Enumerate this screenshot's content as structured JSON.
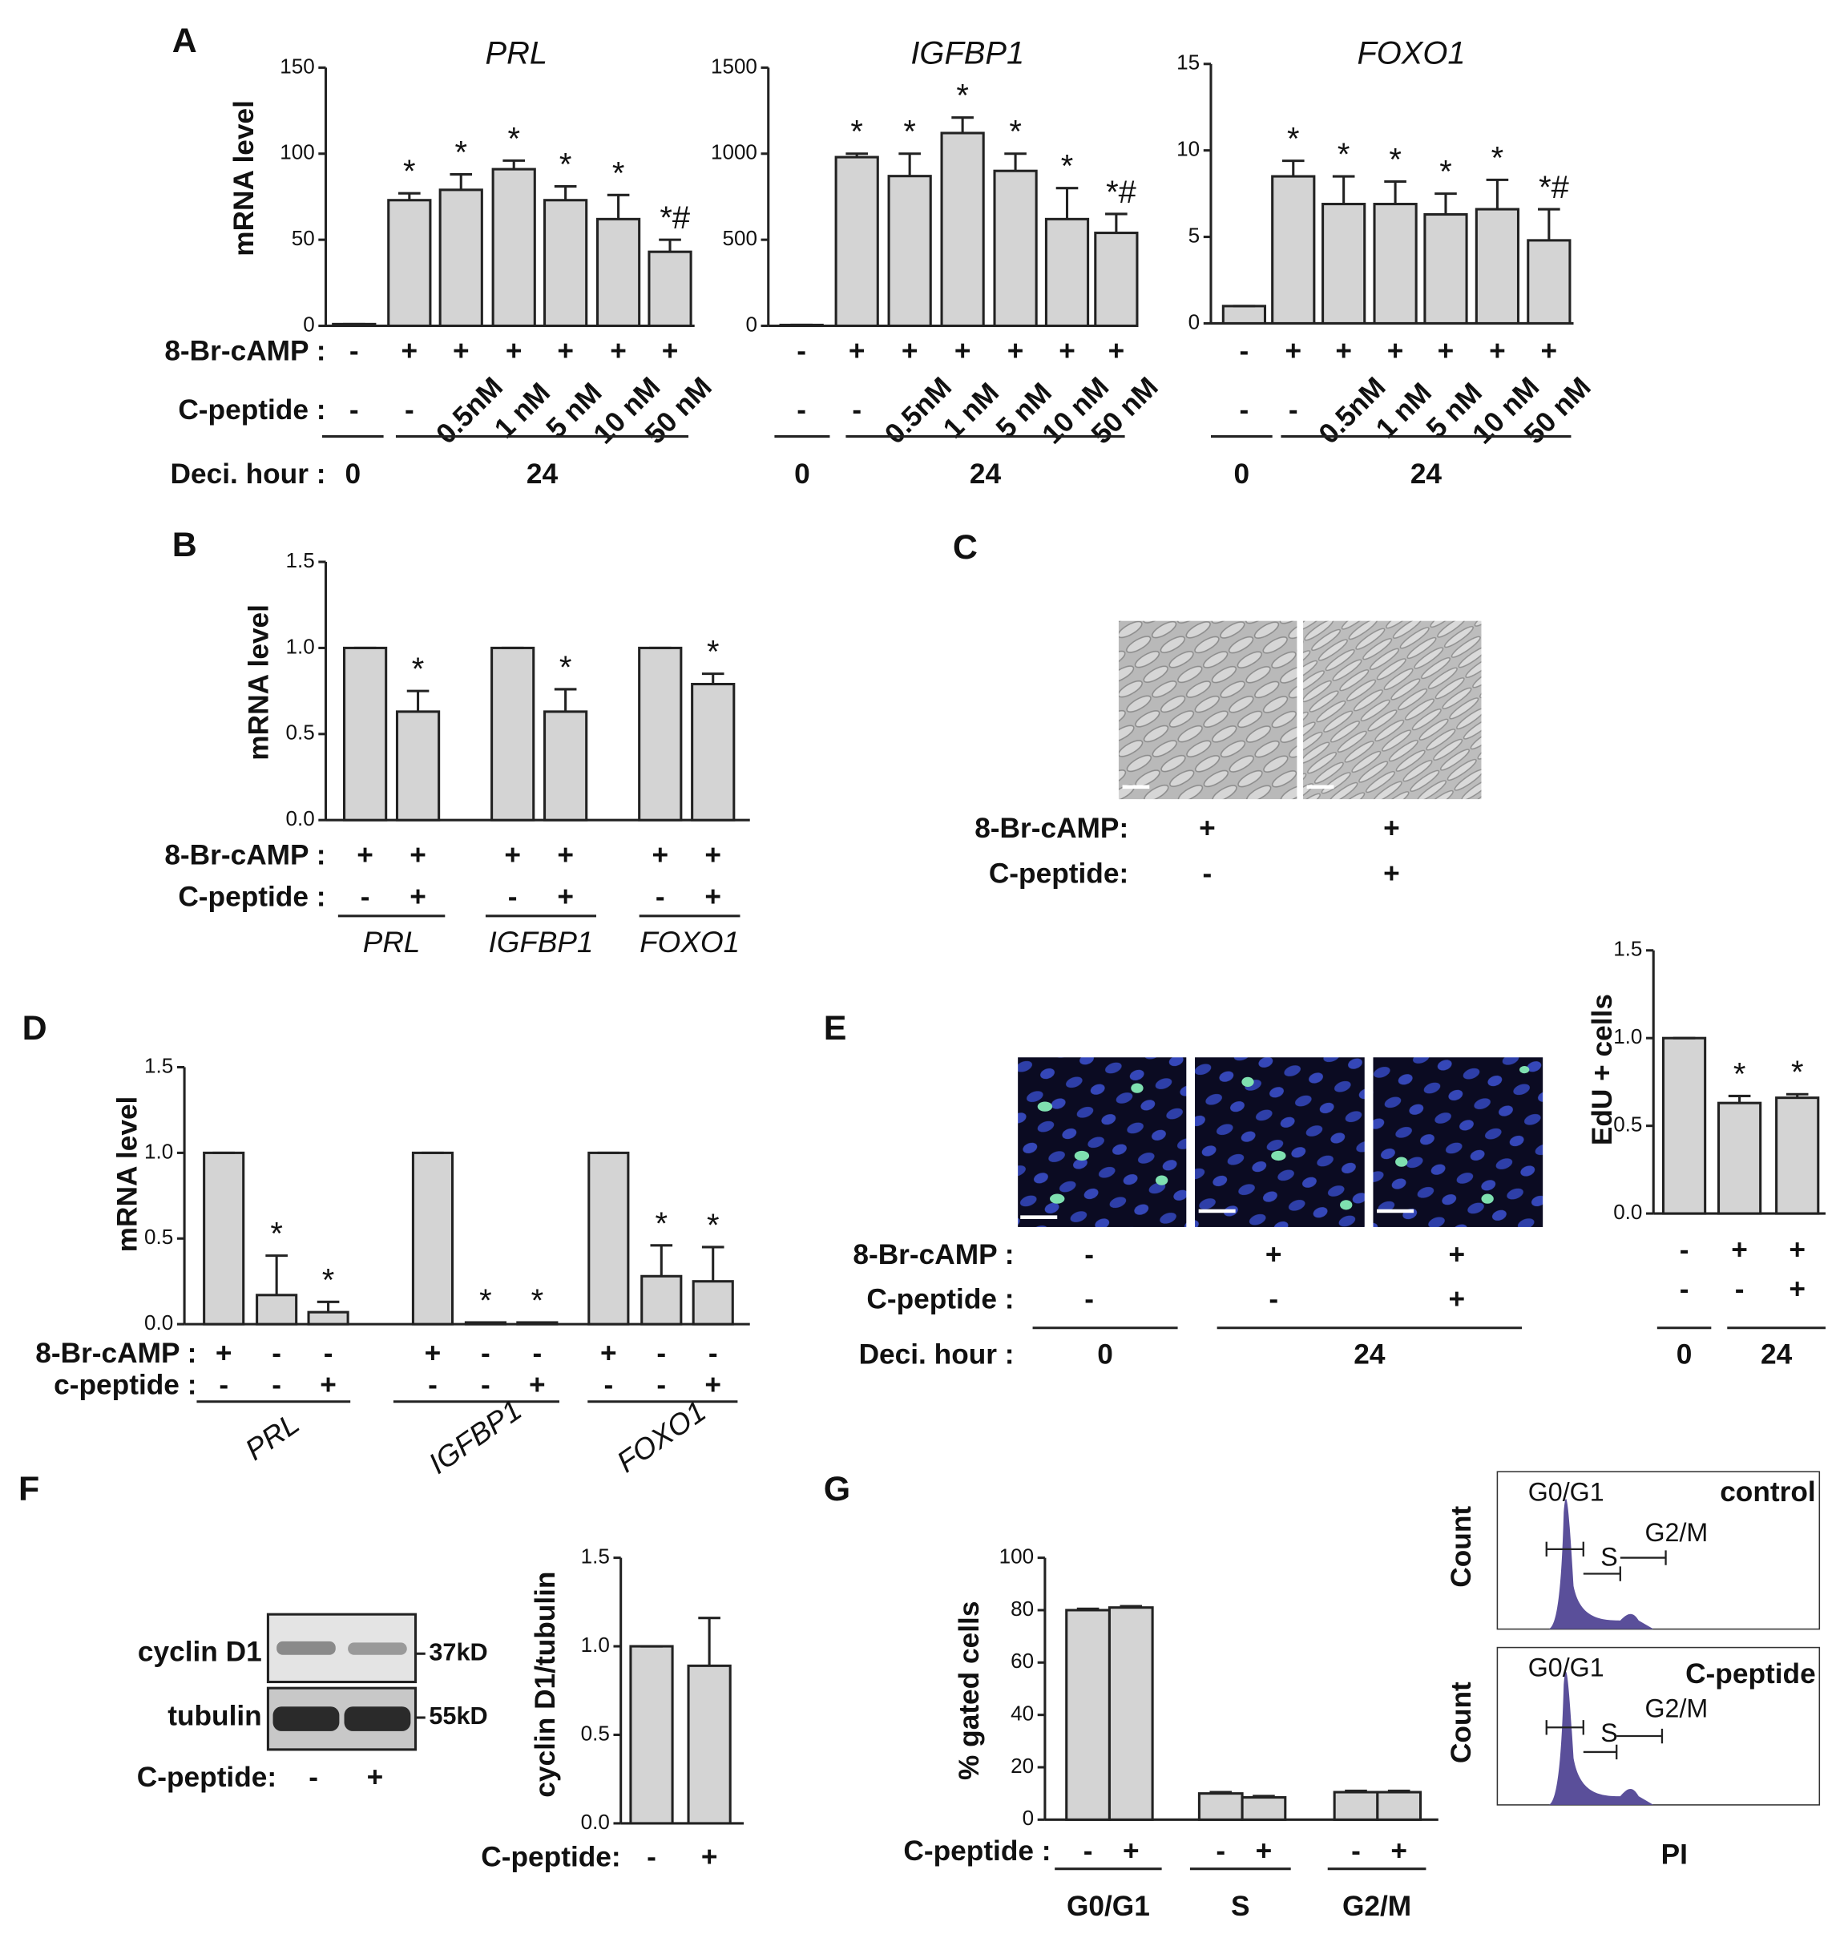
{
  "panel_labels": [
    "A",
    "B",
    "C",
    "D",
    "E",
    "F",
    "G"
  ],
  "chart_data": [
    {
      "type": "bar",
      "title": "PRL",
      "ylabel": "mRNA level",
      "color": "#d4d4d4",
      "values": [
        1,
        73,
        79,
        91,
        73,
        62,
        43
      ],
      "errors": [
        0,
        4,
        9,
        5,
        8,
        14,
        7
      ],
      "annotations": [
        null,
        "*",
        "*",
        "*",
        "*",
        "*",
        "*#"
      ],
      "ylim": [
        0,
        150
      ],
      "yticks": [
        0,
        50,
        100,
        150
      ],
      "rows": [
        {
          "name": "8-Br-cAMP :",
          "labels": [
            "-",
            "+",
            "+",
            "+",
            "+",
            "+",
            "+"
          ]
        },
        {
          "name": "C-peptide :",
          "labels": [
            "-",
            "-",
            "0.5nM",
            "1 nM",
            "5 nM",
            "10 nM",
            "50 nM"
          ]
        }
      ],
      "group_name": "Deci. hour :",
      "groups": [
        "0",
        "24"
      ]
    },
    {
      "type": "bar",
      "title": "IGFBP1",
      "color": "#d4d4d4",
      "values": [
        5,
        980,
        870,
        1120,
        900,
        620,
        540
      ],
      "errors": [
        0,
        20,
        130,
        90,
        100,
        180,
        110
      ],
      "annotations": [
        null,
        "*",
        "*",
        "*",
        "*",
        "*",
        "*#"
      ],
      "ylim": [
        0,
        1500
      ],
      "yticks": [
        0,
        500,
        1000,
        1500
      ],
      "rows": [
        {
          "labels": [
            "-",
            "+",
            "+",
            "+",
            "+",
            "+",
            "+"
          ]
        },
        {
          "labels": [
            "-",
            "-",
            "0.5nM",
            "1 nM",
            "5 nM",
            "10 nM",
            "50 nM"
          ]
        }
      ],
      "groups": [
        "0",
        "24"
      ]
    },
    {
      "type": "bar",
      "title": "FOXO1",
      "color": "#d4d4d4",
      "values": [
        1,
        8.5,
        6.9,
        6.9,
        6.3,
        6.6,
        4.8
      ],
      "errors": [
        0,
        0.9,
        1.6,
        1.3,
        1.2,
        1.7,
        1.8
      ],
      "annotations": [
        null,
        "*",
        "*",
        "*",
        "*",
        "*",
        "*#"
      ],
      "ylim": [
        0,
        15
      ],
      "yticks": [
        0,
        5,
        10,
        15
      ],
      "rows": [
        {
          "labels": [
            "-",
            "+",
            "+",
            "+",
            "+",
            "+",
            "+"
          ]
        },
        {
          "labels": [
            "-",
            "-",
            "0.5nM",
            "1 nM",
            "5 nM",
            "10 nM",
            "50 nM"
          ]
        }
      ],
      "groups": [
        "0",
        "24"
      ]
    },
    {
      "type": "bar",
      "ylabel": "mRNA level",
      "color": "#d4d4d4",
      "values": [
        1,
        0.63,
        1,
        0.63,
        1,
        0.79
      ],
      "errors": [
        0,
        0.12,
        0,
        0.13,
        0,
        0.06
      ],
      "annotations": [
        null,
        "*",
        null,
        "*",
        null,
        "*"
      ],
      "ylim": [
        0,
        1.5
      ],
      "yticks": [
        {
          "value": 0,
          "label": "0.0"
        },
        0.5,
        {
          "value": 1,
          "label": "1.0"
        },
        1.5
      ],
      "rows": [
        {
          "name": "8-Br-cAMP :",
          "labels": [
            "+",
            "+",
            "+",
            "+",
            "+",
            "+"
          ]
        },
        {
          "name": "C-peptide :",
          "labels": [
            "-",
            "+",
            "-",
            "+",
            "-",
            "+"
          ]
        }
      ],
      "groups": [
        "PRL",
        "IGFBP1",
        "FOXO1"
      ]
    },
    {
      "type": "bar",
      "ylabel": "mRNA level",
      "color": "#d4d4d4",
      "values": [
        1,
        0.17,
        0.07,
        1,
        0.01,
        0.01,
        1,
        0.28,
        0.25
      ],
      "errors": [
        0,
        0.23,
        0.06,
        0,
        0,
        0,
        0,
        0.18,
        0.2
      ],
      "annotations": [
        null,
        "*",
        "*",
        null,
        "*",
        "*",
        null,
        "*",
        "*"
      ],
      "ylim": [
        0,
        1.5
      ],
      "yticks": [
        {
          "value": 0,
          "label": "0.0"
        },
        0.5,
        {
          "value": 1,
          "label": "1.0"
        },
        1.5
      ],
      "rows": [
        {
          "name": "8-Br-cAMP :",
          "labels": [
            "+",
            "-",
            "-",
            "+",
            "-",
            "-",
            "+",
            "-",
            "-"
          ]
        },
        {
          "name": "c-peptide  :",
          "labels": [
            "-",
            "-",
            "+",
            "-",
            "-",
            "+",
            "-",
            "-",
            "+"
          ]
        }
      ],
      "groups": [
        "PRL",
        "IGFBP1",
        "FOXO1"
      ]
    },
    {
      "type": "bar",
      "ylabel": "EdU + cells",
      "color": "#d4d4d4",
      "values": [
        1,
        0.63,
        0.66
      ],
      "errors": [
        0,
        0.04,
        0.02
      ],
      "annotations": [
        null,
        "*",
        "*"
      ],
      "ylim": [
        0,
        1.5
      ],
      "yticks": [
        {
          "value": 0,
          "label": "0.0"
        },
        0.5,
        {
          "value": 1,
          "label": "1.0"
        },
        1.5
      ],
      "rows": [
        {
          "labels": [
            "-",
            "+",
            "+"
          ]
        },
        {
          "labels": [
            "-",
            "-",
            "+"
          ]
        }
      ],
      "groups": [
        "0",
        "24"
      ]
    },
    {
      "type": "bar",
      "ylabel": "cyclin D1/tubulin",
      "color": "#d4d4d4",
      "values": [
        1,
        0.89
      ],
      "errors": [
        0,
        0.27
      ],
      "ylim": [
        0,
        1.5
      ],
      "yticks": [
        {
          "value": 0,
          "label": "0.0"
        },
        0.5,
        {
          "value": 1,
          "label": "1.0"
        },
        1.5
      ],
      "rows": [
        {
          "name": "C-peptide:",
          "labels": [
            "-",
            "+"
          ]
        }
      ]
    },
    {
      "type": "bar",
      "ylabel": "% gated cells",
      "color": "#d4d4d4",
      "values": [
        80,
        81,
        10,
        8.5,
        10.5,
        10.5
      ],
      "errors": [
        0.5,
        0.5,
        0.5,
        0.5,
        0.5,
        0.5
      ],
      "ylim": [
        0,
        100
      ],
      "yticks": [
        0,
        20,
        40,
        60,
        80,
        100
      ],
      "rows": [
        {
          "name": "C-peptide :",
          "labels": [
            "-",
            "+",
            "-",
            "+",
            "-",
            "+"
          ]
        }
      ],
      "groups": [
        "G0/G1",
        "S",
        "G2/M"
      ]
    }
  ],
  "images_C": {
    "rows": [
      {
        "name": "8-Br-cAMP:",
        "labels": [
          "+",
          "+"
        ]
      },
      {
        "name": "C-peptide:",
        "labels": [
          "-",
          "+"
        ]
      }
    ]
  },
  "images_E": {
    "rows": [
      {
        "name": "8-Br-cAMP :",
        "labels": [
          "-",
          "+",
          "+"
        ]
      },
      {
        "name": "C-peptide :",
        "labels": [
          "-",
          "-",
          "+"
        ]
      }
    ],
    "group_name": "Deci. hour :",
    "groups": [
      "0",
      "24"
    ]
  },
  "blot_F": {
    "bands": [
      "cyclin D1",
      "tubulin"
    ],
    "sizes": [
      "37kD",
      "55kD"
    ],
    "row": {
      "name": "C-peptide:",
      "labels": [
        "-",
        "+"
      ]
    }
  },
  "flow_G": {
    "plots": [
      {
        "title": "control",
        "gates": [
          "G0/G1",
          "S",
          "G2/M"
        ]
      },
      {
        "title": "C-peptide",
        "gates": [
          "G0/G1",
          "S",
          "G2/M"
        ]
      }
    ],
    "ylabel": "Count",
    "xlabel": "PI"
  }
}
